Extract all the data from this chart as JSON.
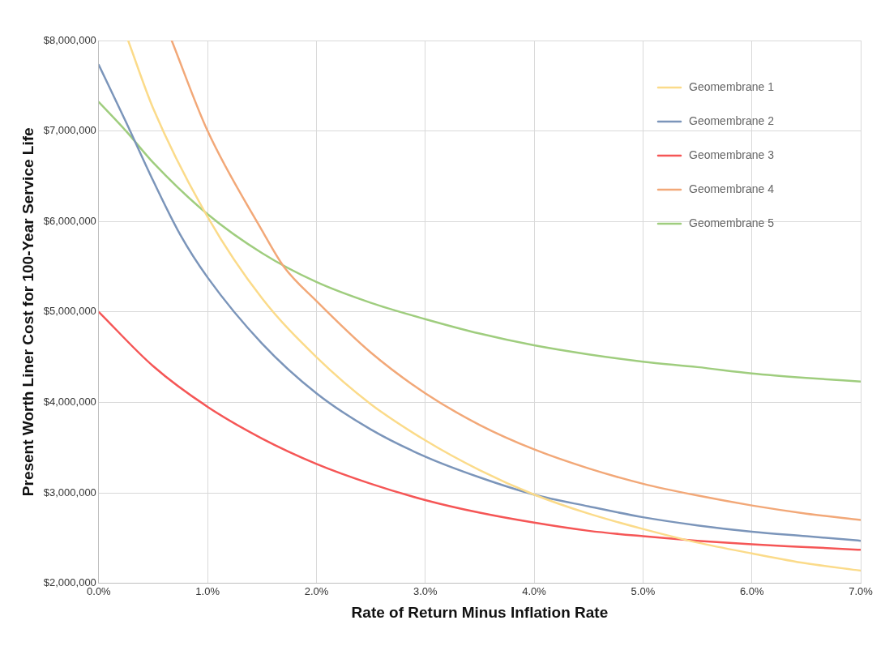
{
  "chart_data": {
    "type": "line",
    "xlabel": "Rate of Return Minus Inflation Rate",
    "ylabel": "Present Worth Liner Cost for 100-Year Service Life",
    "xlim": [
      0,
      7
    ],
    "xticks": [
      {
        "value": 0,
        "label": "0.0%"
      },
      {
        "value": 1,
        "label": "1.0%"
      },
      {
        "value": 2,
        "label": "2.0%"
      },
      {
        "value": 3,
        "label": "3.0%"
      },
      {
        "value": 4,
        "label": "4.0%"
      },
      {
        "value": 5,
        "label": "5.0%"
      },
      {
        "value": 6,
        "label": "6.0%"
      },
      {
        "value": 7,
        "label": "7.0%"
      }
    ],
    "ylim": [
      2000000,
      8000000
    ],
    "yticks": [
      {
        "value": 2000000,
        "label": "$2,000,000"
      },
      {
        "value": 3000000,
        "label": "$3,000,000"
      },
      {
        "value": 4000000,
        "label": "$4,000,000"
      },
      {
        "value": 5000000,
        "label": "$5,000,000"
      },
      {
        "value": 6000000,
        "label": "$6,000,000"
      },
      {
        "value": 7000000,
        "label": "$7,000,000"
      },
      {
        "value": 8000000,
        "label": "$8,000,000"
      }
    ],
    "grid": true,
    "legend": "top right",
    "marker": "none",
    "line_style": "solid",
    "series": [
      {
        "name": "Geomembrane 1",
        "color": "#fbdb8a",
        "x": [
          0.27,
          0.5,
          1,
          1.5,
          2,
          2.5,
          3,
          3.5,
          4,
          4.5,
          5,
          5.5,
          6,
          6.5,
          7
        ],
        "values": [
          8000000,
          7250000,
          6050000,
          5150000,
          4500000,
          3980000,
          3580000,
          3250000,
          2980000,
          2770000,
          2600000,
          2450000,
          2330000,
          2220000,
          2140000
        ]
      },
      {
        "name": "Geomembrane 2",
        "color": "#7b95ba",
        "x": [
          0,
          0.25,
          0.5,
          0.75,
          1,
          1.5,
          2,
          2.5,
          3,
          3.5,
          4,
          4.5,
          5,
          5.5,
          6,
          6.5,
          7
        ],
        "values": [
          7730000,
          7100000,
          6450000,
          5850000,
          5380000,
          4650000,
          4100000,
          3700000,
          3400000,
          3170000,
          2980000,
          2850000,
          2730000,
          2640000,
          2570000,
          2520000,
          2470000
        ]
      },
      {
        "name": "Geomembrane 3",
        "color": "#f55656",
        "x": [
          0,
          0.5,
          1,
          1.5,
          2,
          2.5,
          3,
          3.5,
          4,
          4.5,
          5,
          5.5,
          6,
          6.5,
          7
        ],
        "values": [
          5000000,
          4400000,
          3950000,
          3600000,
          3320000,
          3100000,
          2920000,
          2780000,
          2670000,
          2580000,
          2520000,
          2470000,
          2430000,
          2400000,
          2370000
        ]
      },
      {
        "name": "Geomembrane 4",
        "color": "#f2a878",
        "x": [
          0.67,
          1,
          1.5,
          1.7,
          2,
          2.5,
          3,
          3.5,
          4,
          4.5,
          5,
          5.5,
          6,
          6.5,
          7
        ],
        "values": [
          8000000,
          7000000,
          5900000,
          5500000,
          5120000,
          4550000,
          4100000,
          3750000,
          3480000,
          3270000,
          3100000,
          2970000,
          2860000,
          2770000,
          2700000
        ]
      },
      {
        "name": "Geomembrane 5",
        "color": "#9fcd7e",
        "x": [
          0,
          0.25,
          0.5,
          1,
          1.5,
          2,
          2.5,
          3,
          3.5,
          4,
          4.5,
          5,
          5.5,
          6,
          6.5,
          7
        ],
        "values": [
          7320000,
          7000000,
          6650000,
          6080000,
          5650000,
          5330000,
          5100000,
          4920000,
          4760000,
          4630000,
          4530000,
          4450000,
          4390000,
          4320000,
          4270000,
          4230000
        ]
      }
    ]
  }
}
